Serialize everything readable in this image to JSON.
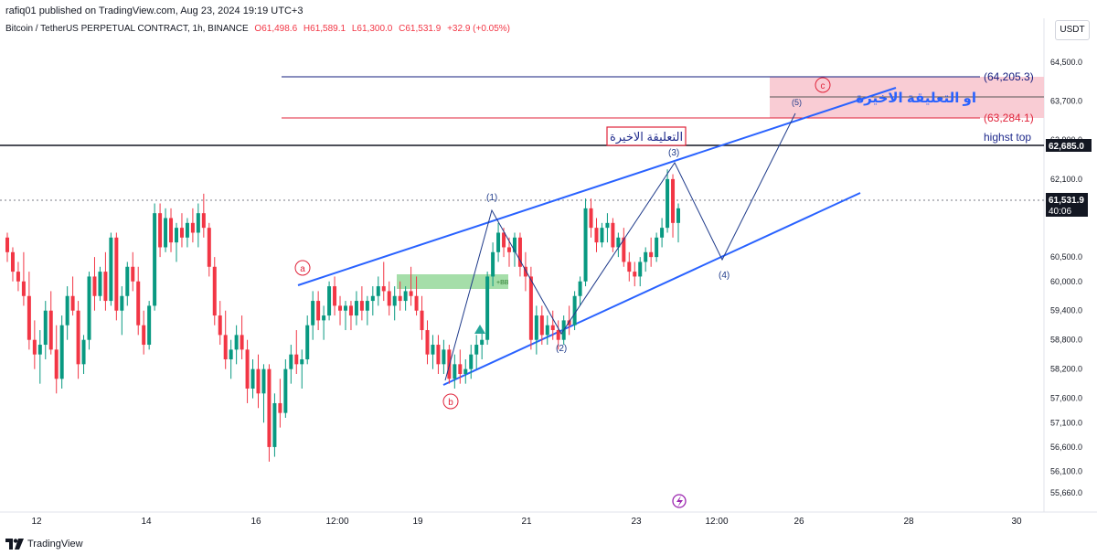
{
  "header": {
    "published_by": "rafiq01 published on TradingView.com, Aug 23, 2024 19:19 UTC+3"
  },
  "legend": {
    "symbol": "Bitcoin / TetherUS PERPETUAL CONTRACT, 1h, BINANCE",
    "open": "O61,498.6",
    "high": "H61,589.1",
    "low": "L61,300.0",
    "close": "C61,531.9",
    "change": "+32.9 (+0.05%)"
  },
  "currency_button": "USDT",
  "footer": {
    "brand": "TradingView"
  },
  "chart_data": {
    "type": "candlestick",
    "title": "",
    "price_axis": {
      "ticks": [
        "64,500.0",
        "63,700.0",
        "62,900.0",
        "62,100.0",
        "60,500.0",
        "60,000.0",
        "59,400.0",
        "58,800.0",
        "58,200.0",
        "57,600.0",
        "57,100.0",
        "56,600.0",
        "56,100.0",
        "55,660.0"
      ]
    },
    "time_axis": {
      "ticks": [
        "12",
        "14",
        "16",
        "12:00",
        "19",
        "21",
        "23",
        "12:00",
        "26",
        "28",
        "30"
      ]
    },
    "current_price": {
      "value": "61,531.9",
      "countdown": "40:06"
    },
    "highest_top": {
      "value": "62,685.0",
      "label": "highst top"
    },
    "levels": [
      {
        "label": "(64,205.3)",
        "value": 64205.3,
        "color": "#131c7e"
      },
      {
        "label": "(63,284.1)",
        "value": 63284.1,
        "color": "#e0233a"
      }
    ],
    "annotations": {
      "arabic_box": "التعليقة الاخيرة",
      "arabic_target": "او التعليقة الاخيرة",
      "wave_labels": [
        "(1)",
        "(2)",
        "(3)",
        "(4)",
        "(5)"
      ],
      "abc_labels": [
        "a",
        "b",
        "c"
      ],
      "bb_label": "+BB"
    },
    "candles_ohlc": [
      [
        60900,
        61000,
        60400,
        60600
      ],
      [
        60600,
        60700,
        60000,
        60200
      ],
      [
        60200,
        60400,
        59800,
        60000
      ],
      [
        60000,
        60600,
        59500,
        59700
      ],
      [
        59700,
        60200,
        58600,
        58800
      ],
      [
        58800,
        59200,
        58200,
        58500
      ],
      [
        58500,
        59000,
        57900,
        58700
      ],
      [
        58700,
        59600,
        58400,
        59400
      ],
      [
        59400,
        59800,
        58500,
        58600
      ],
      [
        58600,
        59100,
        57700,
        58000
      ],
      [
        58000,
        59300,
        57800,
        59100
      ],
      [
        59100,
        59900,
        58800,
        59700
      ],
      [
        59700,
        60100,
        59300,
        59400
      ],
      [
        59400,
        59600,
        58000,
        58300
      ],
      [
        58300,
        58900,
        58100,
        58800
      ],
      [
        58800,
        60200,
        58600,
        60100
      ],
      [
        60100,
        60500,
        59400,
        59700
      ],
      [
        59700,
        60300,
        59600,
        60200
      ],
      [
        60200,
        60600,
        59400,
        59600
      ],
      [
        59600,
        61000,
        59500,
        60900
      ],
      [
        60900,
        61000,
        59200,
        59400
      ],
      [
        59400,
        59900,
        58900,
        59700
      ],
      [
        59700,
        60400,
        59500,
        60300
      ],
      [
        60300,
        60600,
        59800,
        60000
      ],
      [
        60000,
        60300,
        58900,
        59100
      ],
      [
        59100,
        59400,
        58500,
        58700
      ],
      [
        58700,
        59600,
        58600,
        59500
      ],
      [
        59500,
        61600,
        59400,
        61400
      ],
      [
        61400,
        61600,
        60500,
        60700
      ],
      [
        60700,
        61500,
        60600,
        61300
      ],
      [
        61300,
        61500,
        60600,
        60800
      ],
      [
        60800,
        61200,
        60400,
        61100
      ],
      [
        61100,
        61400,
        60700,
        60900
      ],
      [
        60900,
        61300,
        60700,
        61200
      ],
      [
        61200,
        61500,
        60800,
        61000
      ],
      [
        61000,
        61600,
        60700,
        61400
      ],
      [
        61400,
        61800,
        60900,
        61100
      ],
      [
        61100,
        61200,
        60100,
        60300
      ],
      [
        60300,
        60500,
        59100,
        59300
      ],
      [
        59300,
        59600,
        58700,
        58900
      ],
      [
        58900,
        59400,
        58200,
        58400
      ],
      [
        58400,
        58800,
        58000,
        58600
      ],
      [
        58600,
        59100,
        58300,
        58900
      ],
      [
        58900,
        59300,
        58400,
        58600
      ],
      [
        58600,
        58800,
        57500,
        57800
      ],
      [
        57800,
        58400,
        57600,
        58200
      ],
      [
        58200,
        58500,
        57400,
        57700
      ],
      [
        57700,
        58300,
        57100,
        58200
      ],
      [
        58200,
        58300,
        56300,
        56600
      ],
      [
        56600,
        57700,
        56400,
        57500
      ],
      [
        57500,
        58000,
        57000,
        57300
      ],
      [
        57300,
        58400,
        57200,
        58200
      ],
      [
        58200,
        58700,
        57900,
        58500
      ],
      [
        58500,
        59000,
        58100,
        58300
      ],
      [
        58300,
        58600,
        57800,
        58400
      ],
      [
        58400,
        59300,
        58300,
        59100
      ],
      [
        59100,
        59800,
        58800,
        59600
      ],
      [
        59600,
        59800,
        59000,
        59200
      ],
      [
        59200,
        59500,
        58800,
        59300
      ],
      [
        59300,
        60000,
        59200,
        59900
      ],
      [
        59900,
        60100,
        59300,
        59500
      ],
      [
        59500,
        59700,
        59100,
        59400
      ],
      [
        59400,
        59600,
        59000,
        59500
      ],
      [
        59500,
        59600,
        59000,
        59300
      ],
      [
        59300,
        59800,
        59100,
        59600
      ],
      [
        59600,
        59900,
        59200,
        59400
      ],
      [
        59400,
        59700,
        59100,
        59600
      ],
      [
        59600,
        59900,
        59300,
        59700
      ],
      [
        59700,
        60100,
        59500,
        59900
      ],
      [
        59900,
        60400,
        59600,
        59800
      ],
      [
        59800,
        60000,
        59300,
        59500
      ],
      [
        59500,
        59900,
        59200,
        59700
      ],
      [
        59700,
        60000,
        59400,
        59600
      ],
      [
        59600,
        59900,
        59400,
        59800
      ],
      [
        59800,
        60300,
        59500,
        59700
      ],
      [
        59700,
        60100,
        59300,
        59400
      ],
      [
        59400,
        59700,
        58800,
        59000
      ],
      [
        59000,
        59200,
        58300,
        58500
      ],
      [
        58500,
        58900,
        58200,
        58700
      ],
      [
        58700,
        58900,
        58100,
        58300
      ],
      [
        58300,
        58800,
        58100,
        58600
      ],
      [
        58600,
        58700,
        57900,
        58000
      ],
      [
        58000,
        58500,
        57800,
        58300
      ],
      [
        58300,
        58600,
        57900,
        58100
      ],
      [
        58100,
        58400,
        57900,
        58200
      ],
      [
        58200,
        58700,
        58000,
        58500
      ],
      [
        58500,
        58900,
        58200,
        58700
      ],
      [
        58700,
        59000,
        58400,
        58800
      ],
      [
        58800,
        60200,
        58700,
        60100
      ],
      [
        60100,
        60800,
        59900,
        60600
      ],
      [
        60600,
        61200,
        60400,
        61000
      ],
      [
        61000,
        61100,
        60500,
        60700
      ],
      [
        60700,
        60900,
        60300,
        60600
      ],
      [
        60600,
        61000,
        60300,
        60900
      ],
      [
        60900,
        61000,
        60100,
        60300
      ],
      [
        60300,
        60600,
        59800,
        60100
      ],
      [
        60100,
        60300,
        58600,
        58800
      ],
      [
        58800,
        59500,
        58500,
        59300
      ],
      [
        59300,
        59500,
        58700,
        58900
      ],
      [
        58900,
        59300,
        58700,
        59100
      ],
      [
        59100,
        59400,
        58800,
        59000
      ],
      [
        59000,
        59200,
        58600,
        58800
      ],
      [
        58800,
        59300,
        58700,
        59200
      ],
      [
        59200,
        59500,
        58900,
        59100
      ],
      [
        59100,
        59800,
        59000,
        59700
      ],
      [
        59700,
        60100,
        59500,
        60000
      ],
      [
        60000,
        61700,
        59900,
        61500
      ],
      [
        61500,
        61700,
        60900,
        61100
      ],
      [
        61100,
        61300,
        60600,
        60800
      ],
      [
        60800,
        61200,
        60700,
        61100
      ],
      [
        61100,
        61400,
        60800,
        61200
      ],
      [
        61200,
        61300,
        60600,
        60700
      ],
      [
        60700,
        61000,
        60500,
        60900
      ],
      [
        60900,
        61100,
        60300,
        60400
      ],
      [
        60400,
        60600,
        60000,
        60200
      ],
      [
        60200,
        60400,
        59900,
        60100
      ],
      [
        60100,
        60500,
        59900,
        60400
      ],
      [
        60400,
        60700,
        60200,
        60600
      ],
      [
        60600,
        60900,
        60300,
        60500
      ],
      [
        60500,
        61000,
        60400,
        60900
      ],
      [
        60900,
        61300,
        60700,
        61100
      ],
      [
        61100,
        62300,
        61000,
        62100
      ],
      [
        62100,
        62200,
        60900,
        61200
      ],
      [
        61200,
        61600,
        60800,
        61500
      ]
    ]
  }
}
